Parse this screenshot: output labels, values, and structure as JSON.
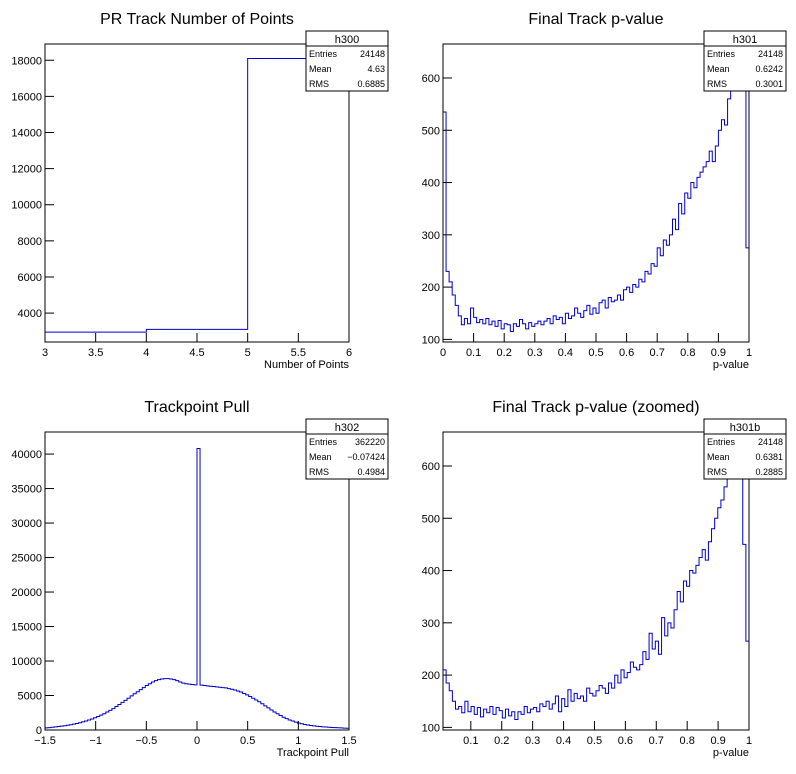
{
  "chart_data": [
    {
      "type": "histogram",
      "title": "PR Track Number of Points",
      "xlabel": "Number of Points",
      "ylabel": "",
      "xlim": [
        3,
        6
      ],
      "ylim": [
        2400,
        18900
      ],
      "xticks": [
        "3",
        "3.5",
        "4",
        "4.5",
        "5",
        "5.5",
        "6"
      ],
      "xtick_values": [
        3,
        3.5,
        4,
        4.5,
        5,
        5.5,
        6
      ],
      "yticks": [
        "4000",
        "6000",
        "8000",
        "10000",
        "12000",
        "14000",
        "16000",
        "18000"
      ],
      "ytick_values": [
        4000,
        6000,
        8000,
        10000,
        12000,
        14000,
        16000,
        18000
      ],
      "edges": [
        3,
        4,
        5,
        6
      ],
      "values": [
        2950,
        3100,
        18100
      ],
      "stats": {
        "name": "h300",
        "entries": "24148",
        "mean": "4.63",
        "rms": "0.6885"
      }
    },
    {
      "type": "histogram",
      "title": "Final Track p-value",
      "xlabel": "p-value",
      "ylabel": "",
      "xlim": [
        0,
        1
      ],
      "ylim": [
        95,
        665
      ],
      "xticks": [
        "0",
        "0.1",
        "0.2",
        "0.3",
        "0.4",
        "0.5",
        "0.6",
        "0.7",
        "0.8",
        "0.9",
        "1"
      ],
      "xtick_values": [
        0,
        0.1,
        0.2,
        0.3,
        0.4,
        0.5,
        0.6,
        0.7,
        0.8,
        0.9,
        1
      ],
      "yticks": [
        "100",
        "200",
        "300",
        "400",
        "500",
        "600"
      ],
      "ytick_values": [
        100,
        200,
        300,
        400,
        500,
        600
      ],
      "edges": [
        0,
        1
      ],
      "values": [
        535,
        230,
        210,
        185,
        165,
        145,
        128,
        140,
        130,
        160,
        142,
        132,
        138,
        130,
        140,
        128,
        135,
        125,
        136,
        120,
        130,
        128,
        115,
        130,
        125,
        138,
        130,
        120,
        132,
        125,
        130,
        135,
        128,
        135,
        140,
        130,
        145,
        138,
        142,
        130,
        150,
        140,
        145,
        160,
        150,
        142,
        155,
        165,
        148,
        160,
        150,
        170,
        175,
        160,
        180,
        172,
        175,
        185,
        175,
        195,
        200,
        190,
        205,
        200,
        215,
        210,
        230,
        225,
        245,
        240,
        275,
        260,
        290,
        280,
        300,
        330,
        310,
        360,
        340,
        380,
        370,
        400,
        390,
        410,
        420,
        430,
        440,
        460,
        440,
        470,
        500,
        520,
        510,
        560,
        590,
        610,
        580,
        650,
        590,
        275
      ],
      "stats": {
        "name": "h301",
        "entries": "24148",
        "mean": "0.6242",
        "rms": "0.3001"
      }
    },
    {
      "type": "histogram",
      "title": "Trackpoint Pull",
      "xlabel": "Trackpoint Pull",
      "ylabel": "",
      "xlim": [
        -1.5,
        1.5
      ],
      "ylim": [
        0,
        43200
      ],
      "xticks": [
        "−1.5",
        "−1",
        "−0.5",
        "0",
        "0.5",
        "1",
        "1.5"
      ],
      "xtick_values": [
        -1.5,
        -1,
        -0.5,
        0,
        0.5,
        1,
        1.5
      ],
      "yticks": [
        "0",
        "5000",
        "10000",
        "15000",
        "20000",
        "25000",
        "30000",
        "35000",
        "40000"
      ],
      "ytick_values": [
        0,
        5000,
        10000,
        15000,
        20000,
        25000,
        30000,
        35000,
        40000
      ],
      "edges": [
        -1.5,
        1.5
      ],
      "values": [
        300,
        350,
        400,
        450,
        500,
        560,
        620,
        690,
        760,
        850,
        950,
        1050,
        1170,
        1300,
        1450,
        1600,
        1780,
        1950,
        2150,
        2350,
        2600,
        2850,
        3100,
        3400,
        3700,
        4000,
        4300,
        4600,
        4950,
        5250,
        5550,
        5850,
        6150,
        6450,
        6700,
        6950,
        7150,
        7300,
        7400,
        7450,
        7450,
        7400,
        7300,
        7150,
        6950,
        6800,
        6700,
        6650,
        6600,
        6550,
        40800,
        6500,
        6450,
        6400,
        6350,
        6300,
        6250,
        6200,
        6150,
        6100,
        6000,
        5900,
        5800,
        5650,
        5500,
        5300,
        5100,
        4850,
        4600,
        4350,
        4100,
        3800,
        3500,
        3200,
        2900,
        2600,
        2350,
        2100,
        1850,
        1650,
        1450,
        1300,
        1150,
        1000,
        900,
        800,
        720,
        650,
        590,
        540,
        500,
        460,
        430,
        400,
        370,
        340,
        320,
        300,
        280,
        260
      ],
      "stats": {
        "name": "h302",
        "entries": "362220",
        "mean": "−0.07424",
        "rms": "0.4984"
      }
    },
    {
      "type": "histogram",
      "title": "Final Track p-value (zoomed)",
      "xlabel": "p-value",
      "ylabel": "",
      "xlim": [
        0.01,
        1
      ],
      "ylim": [
        95,
        665
      ],
      "xticks": [
        "0.1",
        "0.2",
        "0.3",
        "0.4",
        "0.5",
        "0.6",
        "0.7",
        "0.8",
        "0.9",
        "1"
      ],
      "xtick_values": [
        0.1,
        0.2,
        0.3,
        0.4,
        0.5,
        0.6,
        0.7,
        0.8,
        0.9,
        1
      ],
      "yticks": [
        "100",
        "200",
        "300",
        "400",
        "500",
        "600"
      ],
      "ytick_values": [
        100,
        200,
        300,
        400,
        500,
        600
      ],
      "edges": [
        0.01,
        1
      ],
      "values": [
        210,
        185,
        170,
        150,
        135,
        140,
        128,
        150,
        130,
        140,
        125,
        138,
        120,
        135,
        128,
        140,
        125,
        138,
        132,
        118,
        135,
        122,
        130,
        115,
        130,
        125,
        140,
        128,
        135,
        138,
        130,
        145,
        140,
        150,
        135,
        145,
        160,
        130,
        155,
        140,
        172,
        150,
        165,
        155,
        160,
        150,
        175,
        165,
        160,
        170,
        180,
        175,
        165,
        185,
        175,
        200,
        185,
        210,
        195,
        205,
        225,
        215,
        210,
        220,
        245,
        230,
        280,
        250,
        265,
        240,
        310,
        275,
        300,
        290,
        325,
        360,
        340,
        380,
        370,
        400,
        395,
        410,
        425,
        440,
        420,
        455,
        480,
        500,
        520,
        535,
        560,
        600,
        580,
        640,
        620,
        590,
        450,
        265
      ],
      "stats": {
        "name": "h301b",
        "entries": "24148",
        "mean": "0.6381",
        "rms": "0.2885"
      }
    }
  ],
  "stat_labels": {
    "entries": "Entries",
    "mean": "Mean",
    "rms": "RMS"
  },
  "colors": {
    "line": "#0000cc",
    "frame": "#000000"
  }
}
